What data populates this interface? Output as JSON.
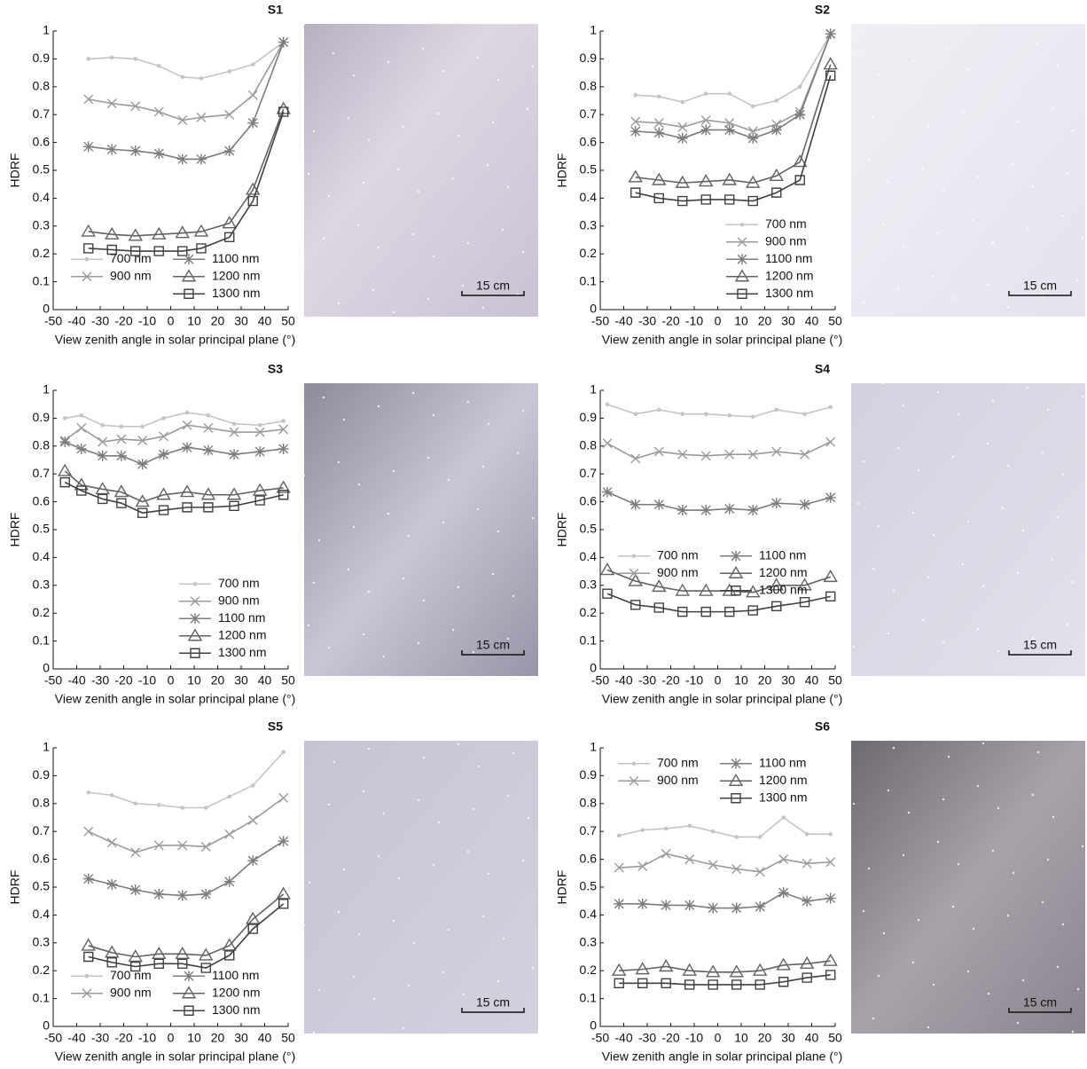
{
  "chart_data": [
    {
      "type": "line",
      "title": "S1",
      "xlabel": "View zenith angle in solar principal plane (°)",
      "ylabel": "HDRF",
      "scale_label": "15 cm",
      "xlim": [
        -50,
        50
      ],
      "ylim": [
        0,
        1
      ],
      "xticks": [
        -50,
        -40,
        -30,
        -20,
        -10,
        0,
        10,
        20,
        30,
        40,
        50
      ],
      "yticks": [
        0,
        0.1,
        0.2,
        0.3,
        0.4,
        0.5,
        0.6,
        0.7,
        0.8,
        0.9,
        1
      ],
      "legend": "lower left",
      "legend_ncol": 2,
      "x": [
        -35,
        -25,
        -15,
        -5,
        5,
        13,
        25,
        35,
        48
      ],
      "series": [
        {
          "name": "700 nm",
          "color": "#c4c4c4",
          "marker": "dot",
          "values": [
            0.9,
            0.905,
            0.9,
            0.875,
            0.835,
            0.83,
            0.855,
            0.88,
            0.96
          ]
        },
        {
          "name": "900 nm",
          "color": "#9a9a9a",
          "marker": "x",
          "values": [
            0.755,
            0.74,
            0.73,
            0.71,
            0.68,
            0.69,
            0.7,
            0.77,
            0.96
          ]
        },
        {
          "name": "1100 nm",
          "color": "#7c7c7c",
          "marker": "asterisk",
          "values": [
            0.585,
            0.575,
            0.57,
            0.56,
            0.54,
            0.54,
            0.57,
            0.67,
            0.96
          ]
        },
        {
          "name": "1200 nm",
          "color": "#626262",
          "marker": "triangle",
          "values": [
            0.28,
            0.27,
            0.265,
            0.27,
            0.275,
            0.28,
            0.31,
            0.43,
            0.72
          ]
        },
        {
          "name": "1300 nm",
          "color": "#404040",
          "marker": "square",
          "values": [
            0.22,
            0.215,
            0.21,
            0.21,
            0.21,
            0.22,
            0.26,
            0.39,
            0.71
          ]
        }
      ]
    },
    {
      "type": "line",
      "title": "S2",
      "xlabel": "View zenith angle in solar principal plane (°)",
      "ylabel": "HDRF",
      "scale_label": "15 cm",
      "xlim": [
        -50,
        50
      ],
      "ylim": [
        0,
        1
      ],
      "xticks": [
        -50,
        -40,
        -30,
        -20,
        -10,
        0,
        10,
        20,
        30,
        40,
        50
      ],
      "yticks": [
        0,
        0.1,
        0.2,
        0.3,
        0.4,
        0.5,
        0.6,
        0.7,
        0.8,
        0.9,
        1
      ],
      "legend": "lower right",
      "legend_ncol": 1,
      "x": [
        -35,
        -25,
        -15,
        -5,
        5,
        15,
        25,
        35,
        48
      ],
      "series": [
        {
          "name": "700 nm",
          "color": "#c4c4c4",
          "marker": "dot",
          "values": [
            0.77,
            0.765,
            0.745,
            0.775,
            0.775,
            0.73,
            0.75,
            0.8,
            0.99
          ]
        },
        {
          "name": "900 nm",
          "color": "#9a9a9a",
          "marker": "x",
          "values": [
            0.675,
            0.67,
            0.655,
            0.68,
            0.67,
            0.64,
            0.665,
            0.71,
            0.99
          ]
        },
        {
          "name": "1100 nm",
          "color": "#7c7c7c",
          "marker": "asterisk",
          "values": [
            0.64,
            0.635,
            0.615,
            0.645,
            0.645,
            0.615,
            0.645,
            0.7,
            0.99
          ]
        },
        {
          "name": "1200 nm",
          "color": "#626262",
          "marker": "triangle",
          "values": [
            0.475,
            0.465,
            0.455,
            0.46,
            0.465,
            0.455,
            0.48,
            0.53,
            0.88
          ]
        },
        {
          "name": "1300 nm",
          "color": "#404040",
          "marker": "square",
          "values": [
            0.42,
            0.4,
            0.39,
            0.395,
            0.395,
            0.39,
            0.42,
            0.465,
            0.84
          ]
        }
      ]
    },
    {
      "type": "line",
      "title": "S3",
      "xlabel": "View zenith angle in solar principal plane (°)",
      "ylabel": "HDRF",
      "scale_label": "15 cm",
      "xlim": [
        -50,
        50
      ],
      "ylim": [
        0,
        1
      ],
      "xticks": [
        -50,
        -40,
        -30,
        -20,
        -10,
        0,
        10,
        20,
        30,
        40,
        50
      ],
      "yticks": [
        0,
        0.1,
        0.2,
        0.3,
        0.4,
        0.5,
        0.6,
        0.7,
        0.8,
        0.9,
        1
      ],
      "legend": "lower right",
      "legend_ncol": 1,
      "x": [
        -45,
        -38,
        -29,
        -21,
        -12,
        -3,
        7,
        16,
        27,
        38,
        48
      ],
      "series": [
        {
          "name": "700 nm",
          "color": "#c4c4c4",
          "marker": "dot",
          "values": [
            0.9,
            0.91,
            0.875,
            0.87,
            0.87,
            0.9,
            0.92,
            0.91,
            0.88,
            0.875,
            0.89
          ]
        },
        {
          "name": "900 nm",
          "color": "#9a9a9a",
          "marker": "x",
          "values": [
            0.82,
            0.865,
            0.815,
            0.825,
            0.82,
            0.835,
            0.875,
            0.865,
            0.85,
            0.85,
            0.86
          ]
        },
        {
          "name": "1100 nm",
          "color": "#7c7c7c",
          "marker": "asterisk",
          "values": [
            0.815,
            0.79,
            0.765,
            0.765,
            0.735,
            0.77,
            0.795,
            0.785,
            0.77,
            0.78,
            0.79
          ]
        },
        {
          "name": "1200 nm",
          "color": "#626262",
          "marker": "triangle",
          "values": [
            0.71,
            0.66,
            0.645,
            0.635,
            0.6,
            0.625,
            0.635,
            0.625,
            0.625,
            0.64,
            0.65
          ]
        },
        {
          "name": "1300 nm",
          "color": "#404040",
          "marker": "square",
          "values": [
            0.67,
            0.64,
            0.61,
            0.595,
            0.56,
            0.57,
            0.58,
            0.58,
            0.585,
            0.605,
            0.625
          ]
        }
      ]
    },
    {
      "type": "line",
      "title": "S4",
      "xlabel": "View zenith angle in solar principal plane (°)",
      "ylabel": "HDRF",
      "scale_label": "15 cm",
      "xlim": [
        -50,
        50
      ],
      "ylim": [
        0,
        1
      ],
      "xticks": [
        -50,
        -40,
        -30,
        -20,
        -10,
        0,
        10,
        20,
        30,
        40,
        50
      ],
      "yticks": [
        0,
        0.1,
        0.2,
        0.3,
        0.4,
        0.5,
        0.6,
        0.7,
        0.8,
        0.9,
        1
      ],
      "legend": "center left",
      "legend_ncol": 2,
      "x": [
        -47,
        -35,
        -25,
        -15,
        -5,
        5,
        15,
        25,
        37,
        48
      ],
      "series": [
        {
          "name": "700 nm",
          "color": "#c4c4c4",
          "marker": "dot",
          "values": [
            0.95,
            0.915,
            0.93,
            0.915,
            0.915,
            0.91,
            0.905,
            0.93,
            0.915,
            0.94
          ]
        },
        {
          "name": "900 nm",
          "color": "#9a9a9a",
          "marker": "x",
          "values": [
            0.81,
            0.755,
            0.78,
            0.77,
            0.765,
            0.77,
            0.77,
            0.78,
            0.77,
            0.815
          ]
        },
        {
          "name": "1100 nm",
          "color": "#7c7c7c",
          "marker": "asterisk",
          "values": [
            0.635,
            0.59,
            0.59,
            0.57,
            0.57,
            0.575,
            0.57,
            0.595,
            0.59,
            0.615
          ]
        },
        {
          "name": "1200 nm",
          "color": "#626262",
          "marker": "triangle",
          "values": [
            0.355,
            0.315,
            0.295,
            0.28,
            0.28,
            0.28,
            0.275,
            0.3,
            0.3,
            0.33
          ]
        },
        {
          "name": "1300 nm",
          "color": "#404040",
          "marker": "square",
          "values": [
            0.27,
            0.23,
            0.22,
            0.205,
            0.205,
            0.205,
            0.21,
            0.225,
            0.24,
            0.26
          ]
        }
      ]
    },
    {
      "type": "line",
      "title": "S5",
      "xlabel": "View zenith angle in solar principal plane (°)",
      "ylabel": "HDRF",
      "scale_label": "15 cm",
      "xlim": [
        -50,
        50
      ],
      "ylim": [
        0,
        1
      ],
      "xticks": [
        -50,
        -40,
        -30,
        -20,
        -10,
        0,
        10,
        20,
        30,
        40,
        50
      ],
      "yticks": [
        0,
        0.1,
        0.2,
        0.3,
        0.4,
        0.5,
        0.6,
        0.7,
        0.8,
        0.9,
        1
      ],
      "legend": "lower left",
      "legend_ncol": 2,
      "x": [
        -35,
        -25,
        -15,
        -5,
        5,
        15,
        25,
        35,
        48
      ],
      "series": [
        {
          "name": "700 nm",
          "color": "#c4c4c4",
          "marker": "dot",
          "values": [
            0.84,
            0.83,
            0.8,
            0.795,
            0.785,
            0.785,
            0.825,
            0.865,
            0.985
          ]
        },
        {
          "name": "900 nm",
          "color": "#9a9a9a",
          "marker": "x",
          "values": [
            0.7,
            0.66,
            0.625,
            0.65,
            0.65,
            0.645,
            0.69,
            0.74,
            0.82
          ]
        },
        {
          "name": "1100 nm",
          "color": "#7c7c7c",
          "marker": "asterisk",
          "values": [
            0.53,
            0.51,
            0.49,
            0.475,
            0.47,
            0.475,
            0.52,
            0.595,
            0.665
          ]
        },
        {
          "name": "1200 nm",
          "color": "#626262",
          "marker": "triangle",
          "values": [
            0.29,
            0.265,
            0.25,
            0.26,
            0.26,
            0.255,
            0.29,
            0.385,
            0.475
          ]
        },
        {
          "name": "1300 nm",
          "color": "#404040",
          "marker": "square",
          "values": [
            0.25,
            0.23,
            0.215,
            0.225,
            0.225,
            0.21,
            0.255,
            0.35,
            0.44
          ]
        }
      ]
    },
    {
      "type": "line",
      "title": "S6",
      "xlabel": "View zenith angle in solar principal plane (°)",
      "ylabel": "HDRF",
      "scale_label": "15 cm",
      "xlim": [
        -50,
        50
      ],
      "ylim": [
        0,
        1
      ],
      "xticks": [
        -50,
        -40,
        -30,
        -20,
        -10,
        0,
        10,
        20,
        30,
        40,
        50
      ],
      "yticks": [
        0,
        0.1,
        0.2,
        0.3,
        0.4,
        0.5,
        0.6,
        0.7,
        0.8,
        0.9,
        1
      ],
      "legend": "upper left",
      "legend_ncol": 2,
      "x": [
        -42,
        -32,
        -22,
        -12,
        -2,
        8,
        18,
        28,
        38,
        48
      ],
      "series": [
        {
          "name": "700 nm",
          "color": "#c4c4c4",
          "marker": "dot",
          "values": [
            0.685,
            0.705,
            0.71,
            0.72,
            0.7,
            0.68,
            0.68,
            0.75,
            0.69,
            0.69
          ]
        },
        {
          "name": "900 nm",
          "color": "#9a9a9a",
          "marker": "x",
          "values": [
            0.57,
            0.575,
            0.62,
            0.6,
            0.58,
            0.565,
            0.555,
            0.6,
            0.585,
            0.59
          ]
        },
        {
          "name": "1100 nm",
          "color": "#7c7c7c",
          "marker": "asterisk",
          "values": [
            0.44,
            0.44,
            0.435,
            0.435,
            0.425,
            0.425,
            0.43,
            0.48,
            0.45,
            0.46
          ]
        },
        {
          "name": "1200 nm",
          "color": "#626262",
          "marker": "triangle",
          "values": [
            0.2,
            0.205,
            0.215,
            0.2,
            0.195,
            0.195,
            0.2,
            0.22,
            0.225,
            0.235
          ]
        },
        {
          "name": "1300 nm",
          "color": "#404040",
          "marker": "square",
          "values": [
            0.155,
            0.155,
            0.155,
            0.15,
            0.15,
            0.15,
            0.15,
            0.16,
            0.175,
            0.185
          ]
        }
      ]
    }
  ]
}
